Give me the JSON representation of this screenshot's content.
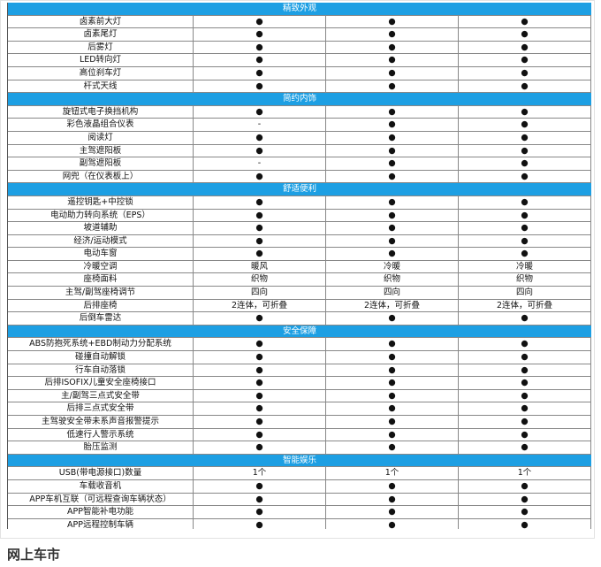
{
  "sections": [
    {
      "title": "精致外观",
      "rows": [
        {
          "label": "卤素前大灯",
          "values": [
            "●",
            "●",
            "●"
          ]
        },
        {
          "label": "卤素尾灯",
          "values": [
            "●",
            "●",
            "●"
          ]
        },
        {
          "label": "后雾灯",
          "values": [
            "●",
            "●",
            "●"
          ]
        },
        {
          "label": "LED转向灯",
          "values": [
            "●",
            "●",
            "●"
          ]
        },
        {
          "label": "高位刹车灯",
          "values": [
            "●",
            "●",
            "●"
          ]
        },
        {
          "label": "杆式天线",
          "values": [
            "●",
            "●",
            "●"
          ]
        }
      ]
    },
    {
      "title": "简约内饰",
      "rows": [
        {
          "label": "旋钮式电子换挡机构",
          "values": [
            "●",
            "●",
            "●"
          ]
        },
        {
          "label": "彩色液晶组合仪表",
          "values": [
            "-",
            "●",
            "●"
          ]
        },
        {
          "label": "阅读灯",
          "values": [
            "●",
            "●",
            "●"
          ]
        },
        {
          "label": "主驾遮阳板",
          "values": [
            "●",
            "●",
            "●"
          ]
        },
        {
          "label": "副驾遮阳板",
          "values": [
            "-",
            "●",
            "●"
          ]
        },
        {
          "label": "网兜（在仪表板上）",
          "values": [
            "●",
            "●",
            "●"
          ]
        }
      ]
    },
    {
      "title": "舒适便利",
      "rows": [
        {
          "label": "遥控钥匙+中控锁",
          "values": [
            "●",
            "●",
            "●"
          ]
        },
        {
          "label": "电动助力转向系统（EPS）",
          "values": [
            "●",
            "●",
            "●"
          ]
        },
        {
          "label": "坡道辅助",
          "values": [
            "●",
            "●",
            "●"
          ]
        },
        {
          "label": "经济/运动模式",
          "values": [
            "●",
            "●",
            "●"
          ]
        },
        {
          "label": "电动车窗",
          "values": [
            "●",
            "●",
            "●"
          ]
        },
        {
          "label": "冷暖空调",
          "values": [
            "暖风",
            "冷暖",
            "冷暖"
          ]
        },
        {
          "label": "座椅面料",
          "values": [
            "织物",
            "织物",
            "织物"
          ]
        },
        {
          "label": "主驾/副驾座椅调节",
          "values": [
            "四向",
            "四向",
            "四向"
          ]
        },
        {
          "label": "后排座椅",
          "values": [
            "2连体，可折叠",
            "2连体，可折叠",
            "2连体，可折叠"
          ]
        },
        {
          "label": "后倒车雷达",
          "values": [
            "●",
            "●",
            "●"
          ]
        }
      ]
    },
    {
      "title": "安全保障",
      "rows": [
        {
          "label": "ABS防抱死系统+EBD制动力分配系统",
          "values": [
            "●",
            "●",
            "●"
          ]
        },
        {
          "label": "碰撞自动解锁",
          "values": [
            "●",
            "●",
            "●"
          ]
        },
        {
          "label": "行车自动落锁",
          "values": [
            "●",
            "●",
            "●"
          ]
        },
        {
          "label": "后排ISOFIX儿童安全座椅接口",
          "values": [
            "●",
            "●",
            "●"
          ]
        },
        {
          "label": "主/副驾三点式安全带",
          "values": [
            "●",
            "●",
            "●"
          ]
        },
        {
          "label": "后排三点式安全带",
          "values": [
            "●",
            "●",
            "●"
          ]
        },
        {
          "label": "主驾驶安全带未系声音报警提示",
          "values": [
            "●",
            "●",
            "●"
          ]
        },
        {
          "label": "低速行人警示系统",
          "values": [
            "●",
            "●",
            "●"
          ]
        },
        {
          "label": "胎压监测",
          "values": [
            "●",
            "●",
            "●"
          ]
        }
      ]
    },
    {
      "title": "智能娱乐",
      "rows": [
        {
          "label": "USB(带电源接口)数量",
          "values": [
            "1个",
            "1个",
            "1个"
          ]
        },
        {
          "label": "车载收音机",
          "values": [
            "●",
            "●",
            "●"
          ]
        },
        {
          "label": "APP车机互联（可远程查询车辆状态）",
          "values": [
            "●",
            "●",
            "●"
          ]
        },
        {
          "label": "APP智能补电功能",
          "values": [
            "●",
            "●",
            "●"
          ]
        },
        {
          "label": "APP远程控制车辆",
          "values": [
            "●",
            "●",
            "●"
          ]
        }
      ]
    }
  ],
  "footer": "网上车市"
}
